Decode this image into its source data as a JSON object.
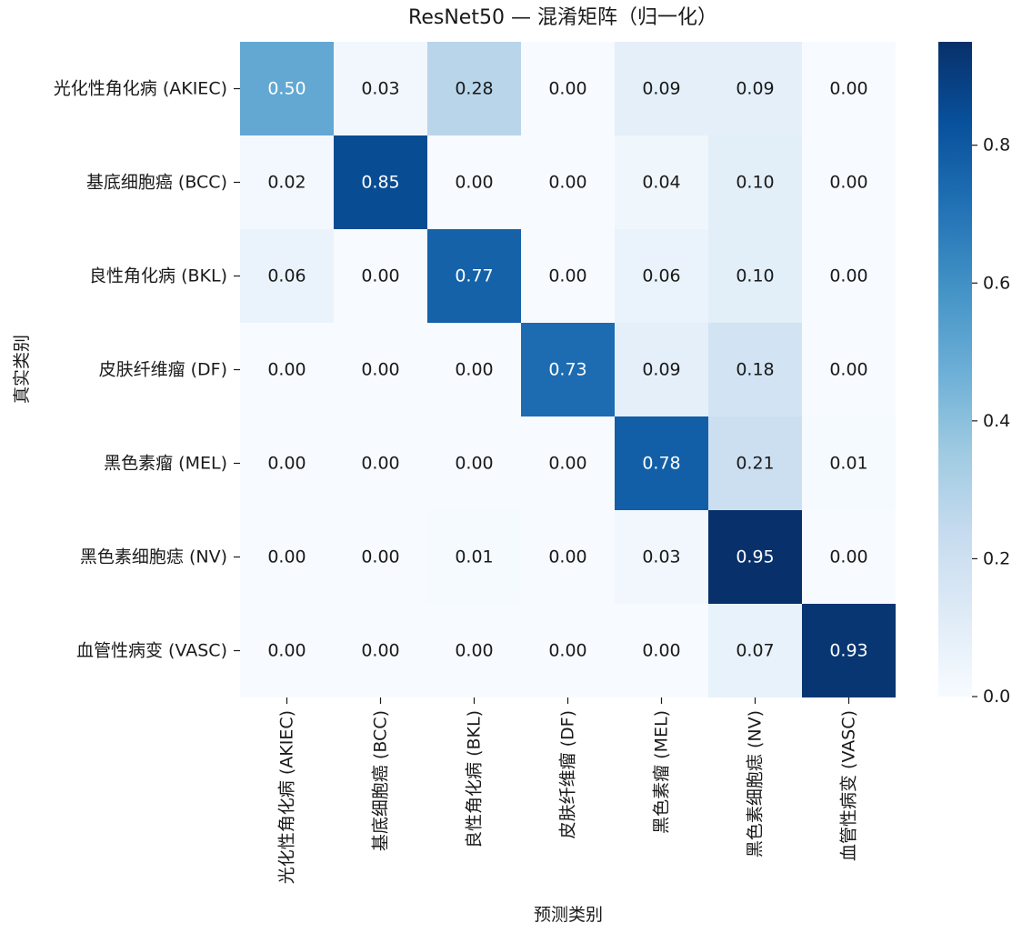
{
  "chart_data": {
    "type": "heatmap",
    "title": "ResNet50 — 混淆矩阵（归一化）",
    "xlabel": "预测类别",
    "ylabel": "真实类别",
    "row_labels": [
      "光化性角化病 (AKIEC)",
      "基底细胞癌 (BCC)",
      "良性角化病 (BKL)",
      "皮肤纤维瘤 (DF)",
      "黑色素瘤 (MEL)",
      "黑色素细胞痣 (NV)",
      "血管性病变 (VASC)"
    ],
    "col_labels": [
      "光化性角化病 (AKIEC)",
      "基底细胞癌 (BCC)",
      "良性角化病 (BKL)",
      "皮肤纤维瘤 (DF)",
      "黑色素瘤 (MEL)",
      "黑色素细胞痣 (NV)",
      "血管性病变 (VASC)"
    ],
    "values": [
      [
        0.5,
        0.03,
        0.28,
        0.0,
        0.09,
        0.09,
        0.0
      ],
      [
        0.02,
        0.85,
        0.0,
        0.0,
        0.04,
        0.1,
        0.0
      ],
      [
        0.06,
        0.0,
        0.77,
        0.0,
        0.06,
        0.1,
        0.0
      ],
      [
        0.0,
        0.0,
        0.0,
        0.73,
        0.09,
        0.18,
        0.0
      ],
      [
        0.0,
        0.0,
        0.0,
        0.0,
        0.78,
        0.21,
        0.01
      ],
      [
        0.0,
        0.0,
        0.01,
        0.0,
        0.03,
        0.95,
        0.0
      ],
      [
        0.0,
        0.0,
        0.0,
        0.0,
        0.0,
        0.07,
        0.93
      ]
    ],
    "colorbar": {
      "range": [
        0.0,
        0.95
      ],
      "ticks": [
        0.0,
        0.2,
        0.4,
        0.6,
        0.8
      ],
      "tick_labels": [
        "0.0",
        "0.2",
        "0.4",
        "0.6",
        "0.8"
      ],
      "colormap": "Blues"
    }
  }
}
